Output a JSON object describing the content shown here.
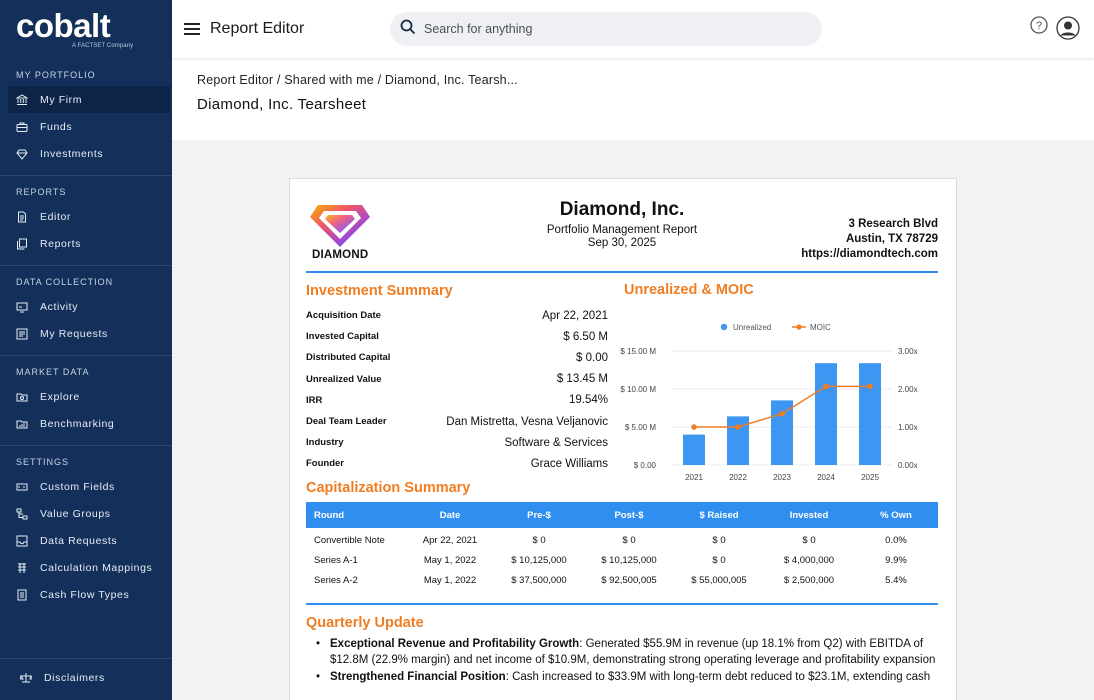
{
  "sidebar": {
    "brand": "cobalt",
    "brand_sub": "A FACTSET Company",
    "sections": [
      {
        "heading": "MY PORTFOLIO",
        "items": [
          {
            "label": "My Firm",
            "icon": "bank-icon"
          },
          {
            "label": "Funds",
            "icon": "briefcase-icon"
          },
          {
            "label": "Investments",
            "icon": "diamond-icon"
          }
        ]
      },
      {
        "heading": "REPORTS",
        "items": [
          {
            "label": "Editor",
            "icon": "document-icon"
          },
          {
            "label": "Reports",
            "icon": "copy-icon"
          }
        ]
      },
      {
        "heading": "DATA COLLECTION",
        "items": [
          {
            "label": "Activity",
            "icon": "monitor-icon"
          },
          {
            "label": "My Requests",
            "icon": "list-icon"
          }
        ]
      },
      {
        "heading": "MARKET DATA",
        "items": [
          {
            "label": "Explore",
            "icon": "folder-search-icon"
          },
          {
            "label": "Benchmarking",
            "icon": "folder-chart-icon"
          }
        ]
      },
      {
        "heading": "SETTINGS",
        "items": [
          {
            "label": "Custom Fields",
            "icon": "input-icon"
          },
          {
            "label": "Value Groups",
            "icon": "hierarchy-icon"
          },
          {
            "label": "Data Requests",
            "icon": "inbox-icon"
          },
          {
            "label": "Calculation Mappings",
            "icon": "calculator-icon"
          },
          {
            "label": "Cash Flow Types",
            "icon": "ledger-icon"
          }
        ]
      }
    ],
    "footer": {
      "label": "Disclaimers",
      "icon": "scale-icon"
    }
  },
  "topbar": {
    "title": "Report Editor",
    "search_placeholder": "Search for anything"
  },
  "breadcrumb": "Report Editor / Shared with me / Diamond, Inc. Tearsh...",
  "page_title": "Diamond, Inc. Tearsheet",
  "report": {
    "logo_word": "DIAMOND",
    "company_name": "Diamond, Inc.",
    "subtitle": "Portfolio Management Report",
    "date": "Sep 30, 2025",
    "address_1": "3 Research Blvd",
    "address_2": "Austin, TX 78729",
    "website": "https://diamondtech.com",
    "investment_summary_title": "Investment Summary",
    "investment_summary": [
      {
        "label": "Acquisition Date",
        "value": "Apr 22, 2021"
      },
      {
        "label": "Invested Capital",
        "value": "$ 6.50 M"
      },
      {
        "label": "Distributed Capital",
        "value": "$ 0.00"
      },
      {
        "label": "Unrealized Value",
        "value": "$ 13.45 M"
      },
      {
        "label": "IRR",
        "value": "19.54%"
      },
      {
        "label": "Deal Team Leader",
        "value": "Dan Mistretta, Vesna Veljanovic"
      },
      {
        "label": "Industry",
        "value": "Software & Services"
      },
      {
        "label": "Founder",
        "value": "Grace Williams"
      }
    ],
    "chart_title": "Unrealized & MOIC",
    "cap_title": "Capitalization Summary",
    "cap_headers": [
      "Round",
      "Date",
      "Pre-$",
      "Post-$",
      "$ Raised",
      "Invested",
      "% Own"
    ],
    "cap_rows": [
      [
        "Convertible Note",
        "Apr 22, 2021",
        "$ 0",
        "$ 0",
        "$ 0",
        "$ 0",
        "0.0%"
      ],
      [
        "Series A-1",
        "May 1, 2022",
        "$ 10,125,000",
        "$ 10,125,000",
        "$ 0",
        "$ 4,000,000",
        "9.9%"
      ],
      [
        "Series A-2",
        "May 1, 2022",
        "$ 37,500,000",
        "$ 92,500,005",
        "$ 55,000,005",
        "$ 2,500,000",
        "5.4%"
      ]
    ],
    "quarterly_title": "Quarterly Update",
    "quarterly": [
      {
        "bold": "Exceptional Revenue and Profitability Growth",
        "text": ": Generated $55.9M in revenue (up 18.1% from Q2) with EBITDA of $12.8M (22.9% margin) and net income of $10.9M, demonstrating strong operating leverage and profitability expansion"
      },
      {
        "bold": "Strengthened Financial Position",
        "text": ": Cash increased to $33.9M with long-term debt reduced to $23.1M, extending cash"
      }
    ]
  },
  "colors": {
    "sidebar": "#14305a",
    "accent_blue": "#2f8ef0",
    "accent_orange": "#f07d22"
  },
  "chart_data": {
    "type": "bar",
    "title": "Unrealized & MOIC",
    "categories": [
      "2021",
      "2022",
      "2023",
      "2024",
      "2025"
    ],
    "series": [
      {
        "name": "Unrealized",
        "type": "bar",
        "axis": "left",
        "values": [
          4.0,
          6.4,
          8.5,
          13.4,
          13.4
        ]
      },
      {
        "name": "MOIC",
        "type": "line",
        "axis": "right",
        "values": [
          1.0,
          1.0,
          1.35,
          2.07,
          2.07
        ]
      }
    ],
    "y_left": {
      "ticks": [
        "$ 0.00",
        "$ 5.00 M",
        "$ 10.00 M",
        "$ 15.00 M"
      ],
      "range": [
        0,
        15
      ]
    },
    "y_right": {
      "ticks": [
        "0.00x",
        "1.00x",
        "2.00x",
        "3.00x"
      ],
      "range": [
        0,
        3
      ]
    },
    "legend": [
      "Unrealized",
      "MOIC"
    ]
  }
}
